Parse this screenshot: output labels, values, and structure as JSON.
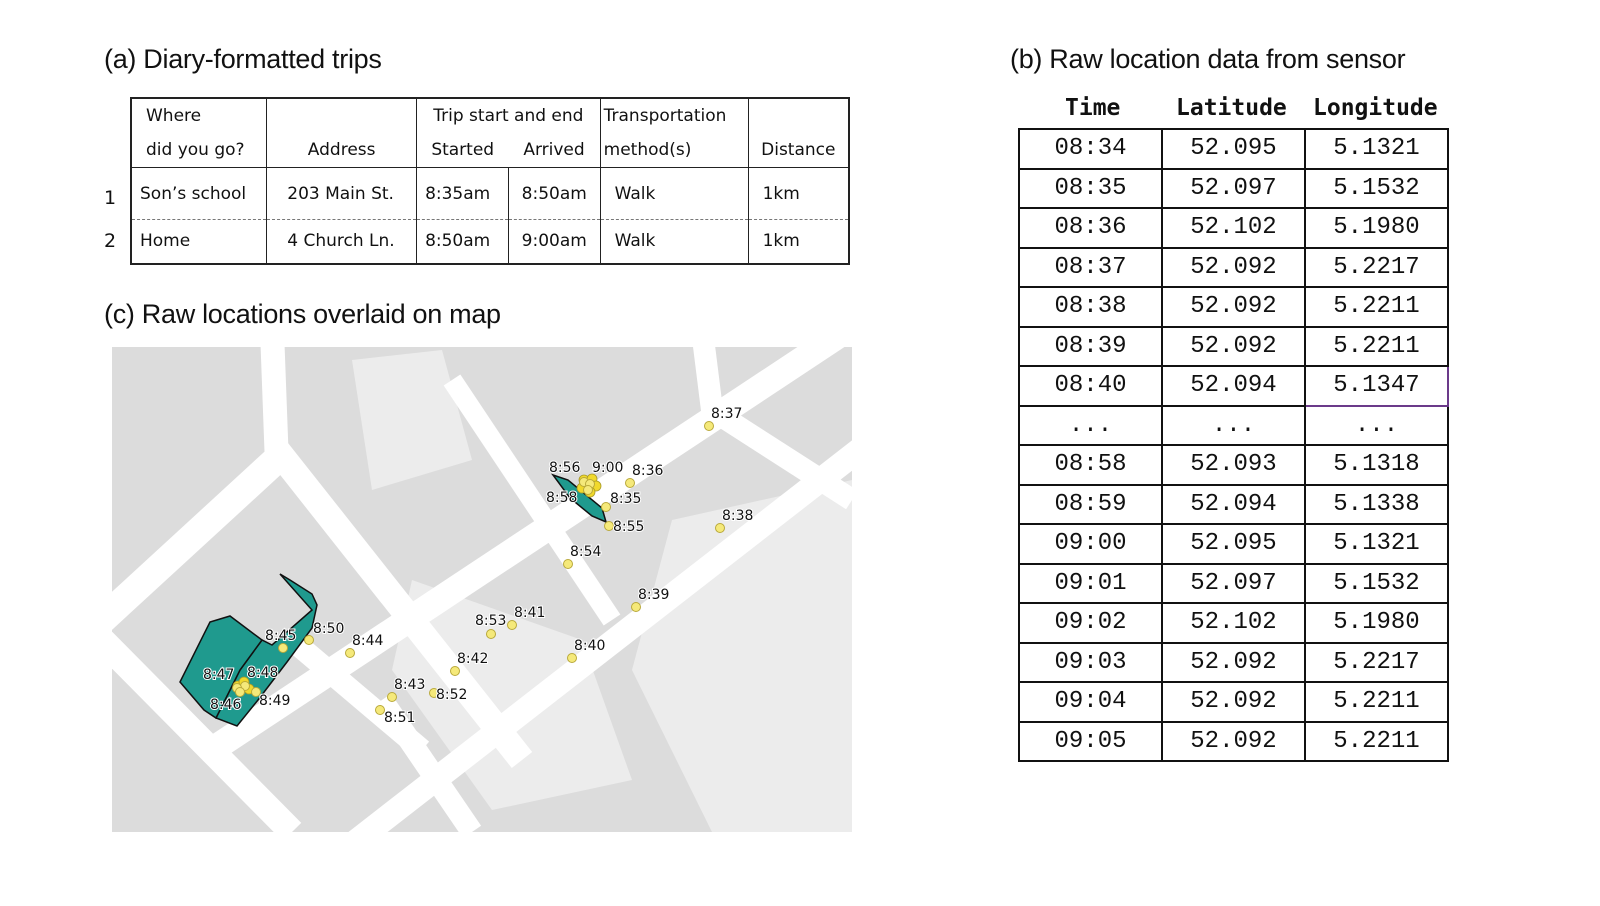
{
  "panel_a": {
    "title": "(a) Diary-formatted trips",
    "headers": {
      "where_line1": "Where",
      "where_line2": "did you go?",
      "address": "Address",
      "trip_group": "Trip start and end",
      "started": "Started",
      "arrived": "Arrived",
      "transport_line1": "Transportation",
      "transport_line2": "method(s)",
      "distance": "Distance"
    },
    "rows": [
      {
        "num": "1",
        "where": "Son’s school",
        "address": "203 Main St.",
        "started": "8:35am",
        "arrived": "8:50am",
        "method": "Walk",
        "distance": "1km"
      },
      {
        "num": "2",
        "where": "Home",
        "address": "4 Church Ln.",
        "started": "8:50am",
        "arrived": "9:00am",
        "method": "Walk",
        "distance": "1km"
      }
    ]
  },
  "panel_b": {
    "title": "(b) Raw location data from sensor",
    "headers": [
      "Time",
      "Latitude",
      "Longitude"
    ],
    "highlight_color": "#6b3a8a",
    "rows": [
      [
        "08:34",
        "52.095",
        "5.1321"
      ],
      [
        "08:35",
        "52.097",
        "5.1532"
      ],
      [
        "08:36",
        "52.102",
        "5.1980"
      ],
      [
        "08:37",
        "52.092",
        "5.2217"
      ],
      [
        "08:38",
        "52.092",
        "5.2211"
      ],
      [
        "08:39",
        "52.092",
        "5.2211"
      ],
      [
        "08:40",
        "52.094",
        "5.1347"
      ],
      [
        "...",
        "...",
        "..."
      ],
      [
        "08:58",
        "52.093",
        "5.1318"
      ],
      [
        "08:59",
        "52.094",
        "5.1338"
      ],
      [
        "09:00",
        "52.095",
        "5.1321"
      ],
      [
        "09:01",
        "52.097",
        "5.1532"
      ],
      [
        "09:02",
        "52.102",
        "5.1980"
      ],
      [
        "09:03",
        "52.092",
        "5.2217"
      ],
      [
        "09:04",
        "52.092",
        "5.2211"
      ],
      [
        "09:05",
        "52.092",
        "5.2211"
      ]
    ]
  },
  "panel_c": {
    "title": "(c) Raw locations overlaid on map",
    "colors": {
      "building": "#dcdcdc",
      "road": "#ffffff",
      "place": "#1f9a8e",
      "point": "#f5e97a"
    },
    "point_labels": [
      "8:37",
      "8:36",
      "8:35",
      "8:55",
      "8:54",
      "8:38",
      "8:39",
      "8:41",
      "8:53",
      "8:40",
      "8:50",
      "8:44",
      "8:45",
      "8:42",
      "8:43",
      "8:52",
      "8:51",
      "8:49",
      "8:48",
      "8:47",
      "8:46",
      "8:56",
      "9:00",
      "8:58"
    ]
  }
}
